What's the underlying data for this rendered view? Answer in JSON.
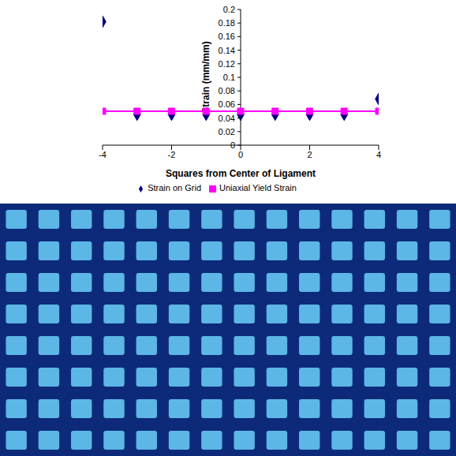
{
  "chart_data": {
    "type": "scatter",
    "x_label": "Squares from Center of Ligament",
    "y_label": "Strain (mm/mm)",
    "xlim": [
      -4,
      4
    ],
    "xticks": [
      -4,
      -2,
      0,
      2,
      4
    ],
    "ylim": [
      0,
      0.2
    ],
    "yticks": [
      0,
      0.02,
      0.04,
      0.06,
      0.08,
      0.1,
      0.12,
      0.14,
      0.16,
      0.18,
      0.2
    ],
    "grid": false,
    "legend": "bottom",
    "series": [
      {
        "name": "Strain on Grid",
        "color": "#000080",
        "marker": "diamond",
        "line_style": "none",
        "x": [
          -4,
          -3,
          -2,
          -1,
          0,
          1,
          2,
          3,
          4
        ],
        "values": [
          0.182,
          0.045,
          0.045,
          0.045,
          0.045,
          0.045,
          0.045,
          0.045,
          0.068
        ]
      },
      {
        "name": "Uniaxial Yield Strain",
        "color": "#ff00ff",
        "marker": "square",
        "line_style": "solid",
        "x": [
          -4,
          -3,
          -2,
          -1,
          0,
          1,
          2,
          3,
          4
        ],
        "values": [
          0.05,
          0.05,
          0.05,
          0.05,
          0.05,
          0.05,
          0.05,
          0.05,
          0.05
        ]
      }
    ]
  }
}
